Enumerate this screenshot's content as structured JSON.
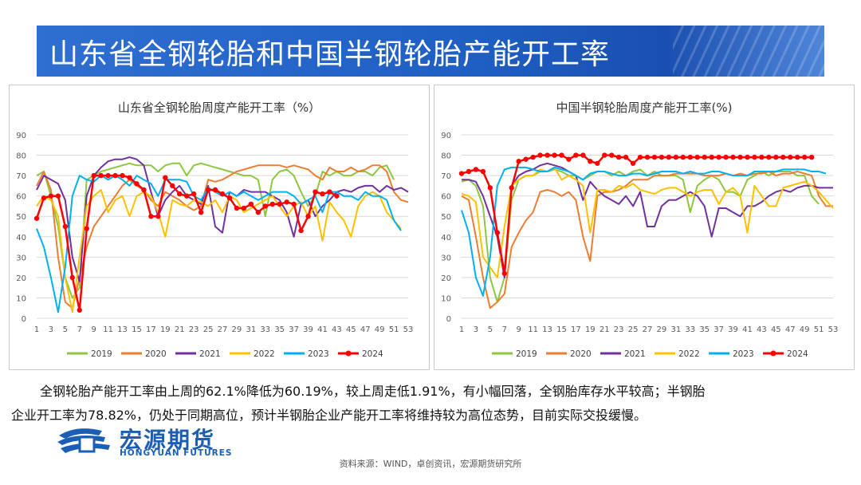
{
  "page": {
    "title": "山东省全钢轮胎和中国半钢轮胎产能开工率",
    "summary_line1": "全钢轮胎产能开工率由上周的62.1%降低为60.19%，较上周走低1.91%，有小幅回落，全钢胎库存水平较高；半钢胎",
    "summary_line2": "企业开工率为78.82%，仍处于同期高位，预计半钢胎企业产能开工率将维持较为高位态势，目前实际交投缓慢。",
    "logo_cn": "宏源期货",
    "logo_en": "HONGYUAN FUTURES",
    "source": "资料来源：WIND，卓创资讯，宏源期货研究所"
  },
  "chart_data": [
    {
      "type": "line",
      "title": "山东省全钢轮胎周度产能开工率（%）",
      "ylim": [
        0,
        90
      ],
      "yticks": [
        0,
        10,
        20,
        30,
        40,
        50,
        60,
        70,
        80,
        90
      ],
      "xticks": [
        1,
        3,
        5,
        7,
        9,
        11,
        13,
        15,
        17,
        19,
        21,
        23,
        25,
        27,
        29,
        31,
        33,
        35,
        37,
        39,
        41,
        43,
        45,
        47,
        49,
        51,
        53
      ],
      "xlim": [
        1,
        53
      ],
      "grid": "horizontal",
      "legend_position": "bottom",
      "series": [
        {
          "name": "2019",
          "color": "#8dc63f",
          "marker": false,
          "values": [
            70,
            72,
            60,
            45,
            20,
            10,
            15,
            68,
            70,
            72,
            73,
            74,
            75,
            76,
            75,
            75,
            75,
            72,
            75,
            76,
            76,
            70,
            75,
            76,
            75,
            74,
            73,
            72,
            71,
            70,
            70,
            68,
            50,
            68,
            72,
            73,
            70,
            62,
            55,
            60,
            72,
            70,
            72,
            70,
            70,
            72,
            72,
            70,
            74,
            75,
            68
          ]
        },
        {
          "name": "2020",
          "color": "#ed7d31",
          "marker": false,
          "values": [
            65,
            72,
            63,
            30,
            8,
            5,
            20,
            35,
            45,
            50,
            55,
            60,
            65,
            68,
            65,
            63,
            58,
            55,
            62,
            60,
            58,
            55,
            53,
            55,
            68,
            67,
            68,
            70,
            72,
            73,
            74,
            75,
            75,
            75,
            75,
            74,
            75,
            74,
            73,
            70,
            68,
            74,
            72,
            72,
            74,
            72,
            73,
            75,
            75,
            72,
            62,
            58,
            57
          ]
        },
        {
          "name": "2021",
          "color": "#7030a0",
          "marker": false,
          "values": [
            63,
            70,
            68,
            66,
            58,
            30,
            18,
            60,
            70,
            74,
            77,
            78,
            78,
            79,
            78,
            75,
            62,
            50,
            58,
            62,
            65,
            60,
            58,
            56,
            65,
            45,
            42,
            62,
            60,
            63,
            62,
            62,
            62,
            60,
            58,
            52,
            40,
            56,
            58,
            50,
            55,
            58,
            62,
            63,
            62,
            64,
            65,
            65,
            62,
            65,
            63,
            64,
            62
          ]
        },
        {
          "name": "2022",
          "color": "#ffc000",
          "marker": false,
          "values": [
            55,
            60,
            58,
            50,
            20,
            3,
            30,
            55,
            60,
            63,
            52,
            58,
            60,
            50,
            60,
            62,
            60,
            52,
            40,
            58,
            56,
            55,
            58,
            57,
            55,
            58,
            52,
            60,
            58,
            52,
            54,
            56,
            58,
            60,
            55,
            50,
            55,
            57,
            50,
            55,
            38,
            57,
            52,
            48,
            40,
            55,
            60,
            62,
            60,
            52,
            48,
            44
          ]
        },
        {
          "name": "2023",
          "color": "#00b0f0",
          "marker": false,
          "values": [
            44,
            35,
            20,
            3,
            25,
            60,
            70,
            68,
            67,
            70,
            68,
            70,
            68,
            65,
            70,
            68,
            66,
            60,
            68,
            68,
            68,
            67,
            60,
            58,
            64,
            62,
            60,
            62,
            60,
            62,
            60,
            58,
            60,
            62,
            62,
            62,
            60,
            56,
            58,
            60,
            52,
            62,
            62,
            60,
            60,
            58,
            62,
            60,
            60,
            58,
            48,
            43
          ]
        },
        {
          "name": "2024",
          "color": "#ff0000",
          "marker": true,
          "values": [
            49,
            59,
            60,
            60,
            45,
            20,
            4,
            44,
            70,
            70,
            70,
            70,
            70,
            69,
            66,
            63,
            50,
            50,
            69,
            65,
            61,
            60,
            61,
            52,
            63,
            63,
            61,
            59,
            54,
            54,
            56,
            52,
            55,
            56,
            56,
            57,
            56,
            43,
            50,
            62,
            61,
            62,
            60
          ]
        }
      ]
    },
    {
      "type": "line",
      "title": "中国半钢轮胎周度产能开工率(%)",
      "ylim": [
        0,
        90
      ],
      "yticks": [
        0,
        10,
        20,
        30,
        40,
        50,
        60,
        70,
        80,
        90
      ],
      "xticks": [
        1,
        3,
        5,
        7,
        9,
        11,
        13,
        15,
        17,
        19,
        21,
        23,
        25,
        27,
        29,
        31,
        33,
        35,
        37,
        39,
        41,
        43,
        45,
        47,
        49,
        51,
        53
      ],
      "xlim": [
        1,
        53
      ],
      "grid": "horizontal",
      "legend_position": "bottom",
      "series": [
        {
          "name": "2019",
          "color": "#8dc63f",
          "marker": false,
          "values": [
            67,
            68,
            65,
            55,
            20,
            8,
            20,
            58,
            68,
            70,
            70,
            72,
            72,
            73,
            72,
            70,
            70,
            68,
            70,
            72,
            72,
            70,
            72,
            70,
            72,
            73,
            70,
            72,
            70,
            70,
            70,
            68,
            52,
            65,
            68,
            70,
            68,
            62,
            62,
            60,
            68,
            70,
            72,
            70,
            72,
            72,
            72,
            70,
            70,
            60,
            56
          ]
        },
        {
          "name": "2020",
          "color": "#ed7d31",
          "marker": false,
          "values": [
            60,
            58,
            40,
            20,
            5,
            8,
            12,
            35,
            42,
            48,
            52,
            62,
            63,
            62,
            60,
            62,
            58,
            40,
            28,
            60,
            62,
            62,
            63,
            65,
            68,
            68,
            68,
            70,
            70,
            70,
            71,
            71,
            71,
            71,
            70,
            70,
            70,
            71,
            70,
            71,
            70,
            71,
            71,
            72,
            70,
            71,
            71,
            72,
            71,
            70,
            60,
            55,
            55
          ]
        },
        {
          "name": "2021",
          "color": "#7030a0",
          "marker": false,
          "values": [
            68,
            68,
            67,
            60,
            50,
            40,
            20,
            65,
            70,
            72,
            73,
            75,
            76,
            75,
            74,
            72,
            70,
            58,
            67,
            63,
            60,
            58,
            56,
            60,
            55,
            62,
            45,
            45,
            55,
            58,
            58,
            60,
            62,
            60,
            55,
            40,
            54,
            54,
            52,
            50,
            55,
            55,
            57,
            60,
            62,
            63,
            62,
            64,
            65,
            65,
            64,
            64,
            64
          ]
        },
        {
          "name": "2022",
          "color": "#ffc000",
          "marker": false,
          "values": [
            61,
            60,
            57,
            30,
            25,
            20,
            45,
            65,
            68,
            70,
            70,
            73,
            72,
            74,
            68,
            70,
            68,
            65,
            42,
            63,
            63,
            62,
            65,
            64,
            66,
            63,
            62,
            61,
            63,
            64,
            64,
            62,
            60,
            62,
            63,
            63,
            56,
            62,
            64,
            60,
            42,
            65,
            60,
            55,
            55,
            64,
            65,
            66,
            67,
            65,
            62,
            58,
            54
          ]
        },
        {
          "name": "2023",
          "color": "#00b0f0",
          "marker": false,
          "values": [
            53,
            42,
            20,
            11,
            30,
            65,
            73,
            74,
            74,
            74,
            73,
            72,
            72,
            74,
            73,
            72,
            70,
            68,
            71,
            72,
            72,
            71,
            70,
            70,
            71,
            71,
            70,
            71,
            72,
            72,
            72,
            71,
            72,
            71,
            71,
            72,
            72,
            71,
            70,
            70,
            70,
            72,
            72,
            72,
            72,
            73,
            73,
            73,
            73,
            72,
            72,
            71
          ]
        },
        {
          "name": "2024",
          "color": "#ff0000",
          "marker": true,
          "values": [
            71,
            72,
            73,
            72,
            64,
            42,
            22,
            64,
            77,
            78,
            79,
            80,
            80,
            80,
            80,
            78,
            80,
            80,
            77,
            76,
            80,
            80,
            79,
            79,
            76,
            79,
            79,
            79,
            79,
            79,
            79,
            79,
            79,
            79,
            79,
            79,
            79,
            79,
            79,
            79,
            79,
            79,
            79,
            79,
            79,
            79,
            79,
            79,
            79,
            79
          ]
        }
      ]
    }
  ]
}
